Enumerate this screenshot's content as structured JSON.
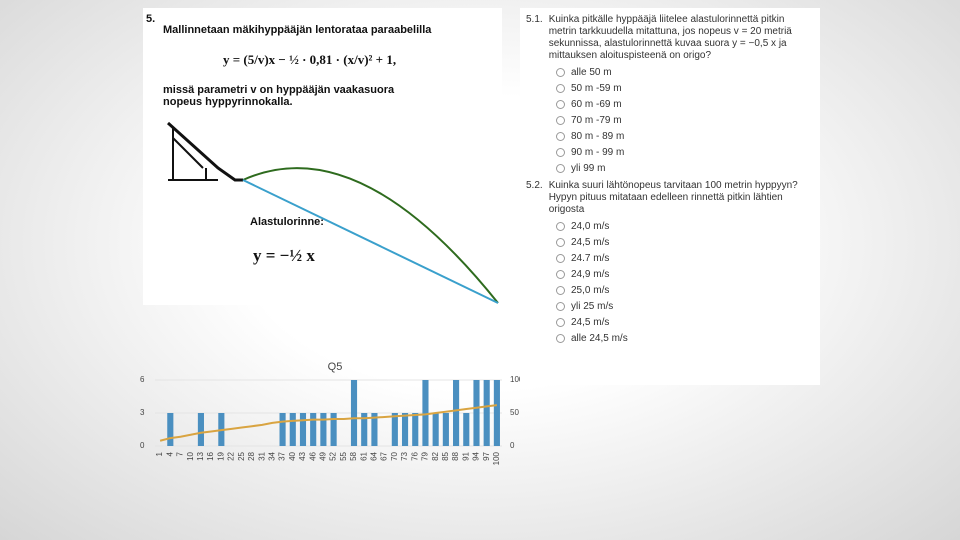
{
  "problem": {
    "number": "5.",
    "intro": "Mallinnetaan mäkihyppääjän lentorataa paraabelilla",
    "equation": "y = (5/v)x − ½ · 0,81 · (x/v)² + 1,",
    "explanation": "missä parametri v on hyppääjän vaakasuora nopeus hyppyrinnokalla.",
    "slope_label": "Alastulorinne:",
    "slope_equation": "y = −½ x"
  },
  "questions": [
    {
      "number": "5.1.",
      "text": "Kuinka pitkälle hyppääjä liitelee alastulorinnettä pitkin metrin tarkkuudella mitattuna, jos nopeus v = 20 metriä sekunnissa, alastulorinnettä kuvaa suora y = −0,5 x ja mittauksen aloituspisteenä on origo?",
      "options": [
        "alle 50 m",
        "50 m -59 m",
        "60 m -69 m",
        "70 m -79 m",
        "80 m - 89 m",
        "90 m - 99 m",
        "yli 99 m"
      ]
    },
    {
      "number": "5.2.",
      "text": "Kuinka suuri lähtönopeus tarvitaan 100 metrin hyppyyn? Hypyn pituus mitataan edelleen rinnettä pitkin lähtien origosta",
      "options": [
        "24,0 m/s",
        "24,5 m/s",
        "24.7 m/s",
        "24,9 m/s",
        "25,0 m/s",
        "yli 25 m/s",
        "24,5 m/s",
        "alle 24,5 m/s"
      ]
    }
  ],
  "chart_data": {
    "type": "bar",
    "title": "Q5",
    "categories": [
      "1",
      "4",
      "7",
      "10",
      "13",
      "16",
      "19",
      "22",
      "25",
      "28",
      "31",
      "34",
      "37",
      "40",
      "43",
      "46",
      "49",
      "52",
      "55",
      "58",
      "61",
      "64",
      "67",
      "70",
      "73",
      "76",
      "79",
      "82",
      "85",
      "88",
      "91",
      "94",
      "97",
      "100"
    ],
    "series": [
      {
        "kind": "bar",
        "color": "#4a8fc0",
        "values": [
          0,
          3,
          0,
          0,
          3,
          0,
          3,
          0,
          0,
          0,
          0,
          0,
          3,
          3,
          3,
          3,
          3,
          3,
          0,
          6,
          3,
          3,
          0,
          3,
          3,
          3,
          6,
          3,
          3,
          6,
          3,
          6,
          6,
          6
        ]
      },
      {
        "kind": "line",
        "axis": "y2",
        "color": "#d9a441",
        "values": [
          8,
          12,
          14,
          17,
          20,
          22,
          24,
          26,
          28,
          30,
          32,
          35,
          37,
          38,
          39,
          40,
          40,
          41,
          41,
          42,
          42,
          43,
          44,
          45,
          46,
          47,
          48,
          50,
          52,
          54,
          56,
          58,
          60,
          62
        ]
      }
    ],
    "ylim": [
      0,
      6
    ],
    "yticks": [
      0,
      3,
      6
    ],
    "y2lim": [
      0,
      100
    ],
    "y2ticks": [
      0,
      50,
      100
    ]
  }
}
